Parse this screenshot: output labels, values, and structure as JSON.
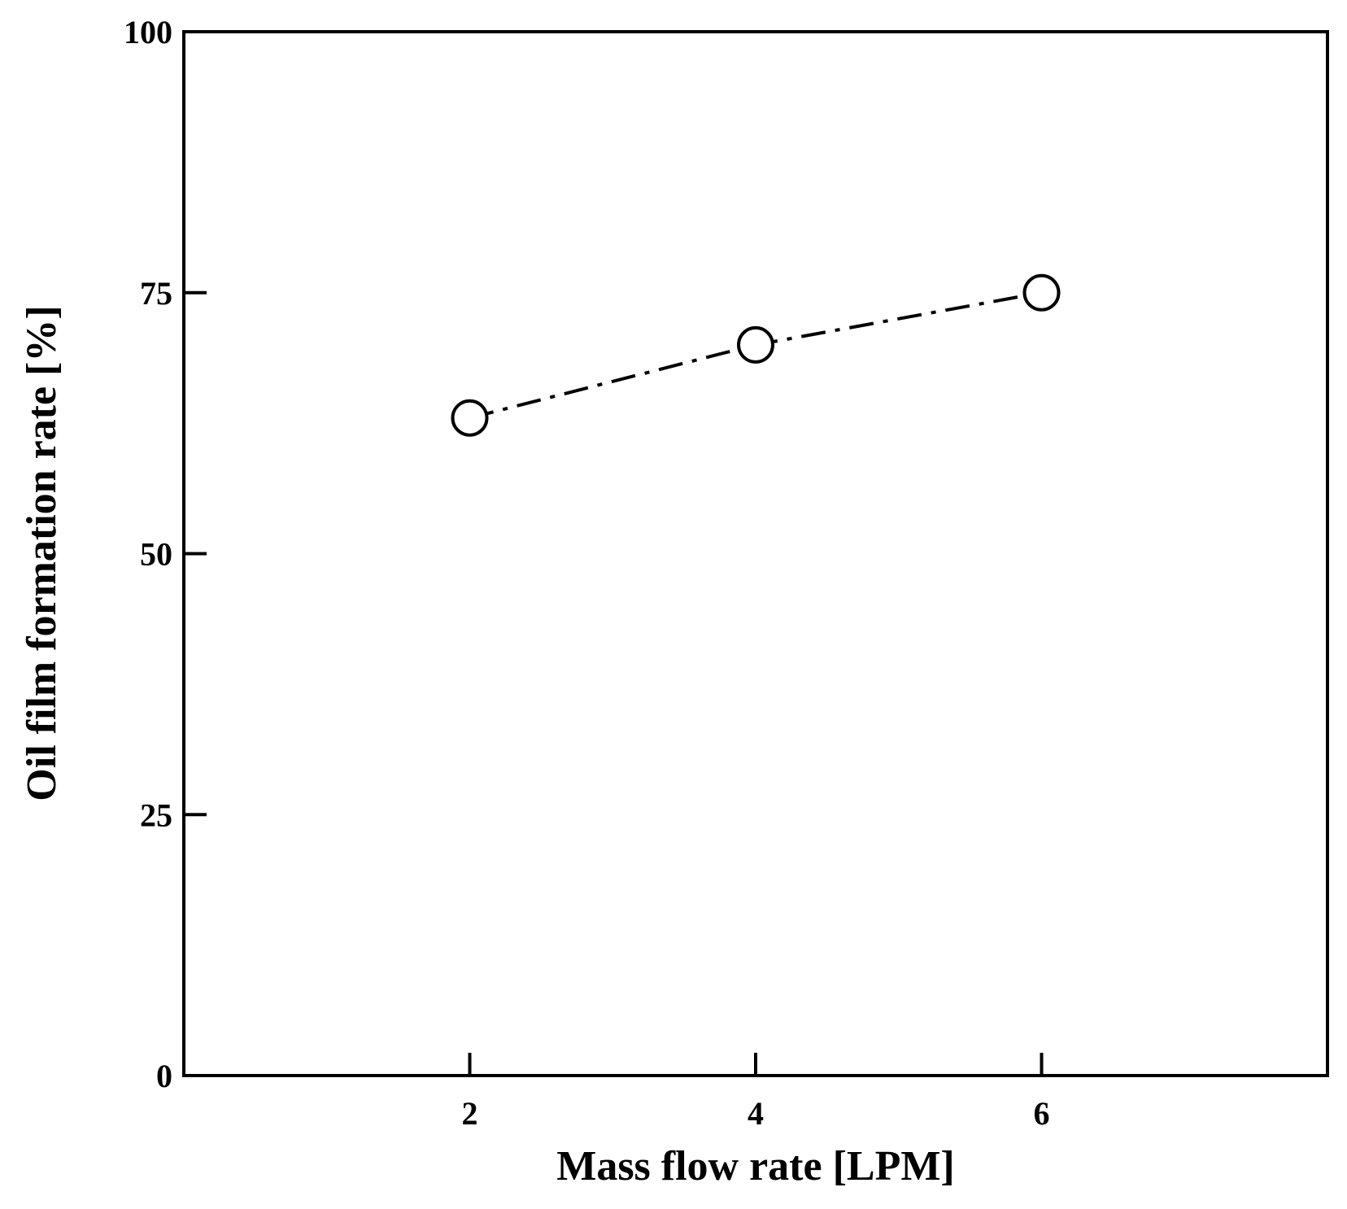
{
  "chart_data": {
    "type": "line",
    "x_label": "Mass flow rate [LPM]",
    "y_label": "Oil film formation rate [%]",
    "x": [
      2,
      4,
      6
    ],
    "series": [
      {
        "values": [
          63,
          70,
          75
        ],
        "color": "#000000"
      }
    ],
    "xlim": [
      0,
      8
    ],
    "xticks": [
      2,
      4,
      6
    ],
    "ylim": [
      0,
      100
    ],
    "yticks": [
      0,
      25,
      50,
      75,
      100
    ],
    "grid": false
  }
}
